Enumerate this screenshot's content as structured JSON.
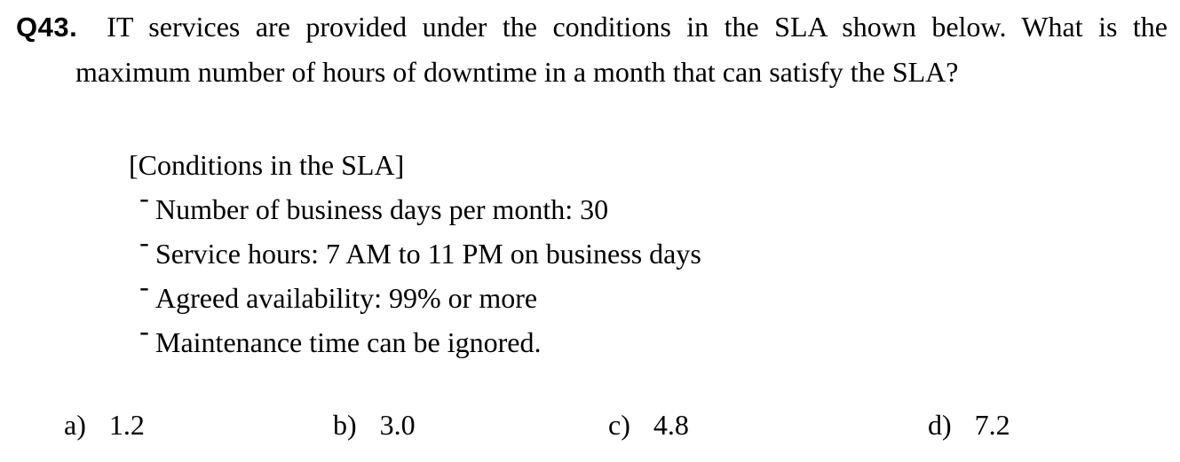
{
  "question": {
    "number": "Q43.",
    "line1": "IT services are provided under the conditions in the SLA shown below. What is the",
    "line2": "maximum number of hours of downtime in a month that can satisfy the SLA?"
  },
  "conditions": {
    "header": "[Conditions in the SLA]",
    "bullet": "-",
    "items": [
      "Number of business days per month: 30",
      "Service hours: 7 AM to 11 PM on business days",
      "Agreed availability: 99% or more",
      "Maintenance time can be ignored."
    ]
  },
  "options": [
    {
      "letter": "a)",
      "value": "1.2"
    },
    {
      "letter": "b)",
      "value": "3.0"
    },
    {
      "letter": "c)",
      "value": "4.8"
    },
    {
      "letter": "d)",
      "value": "7.2"
    }
  ],
  "colors": {
    "background": "#ffffff",
    "text": "#000000"
  }
}
